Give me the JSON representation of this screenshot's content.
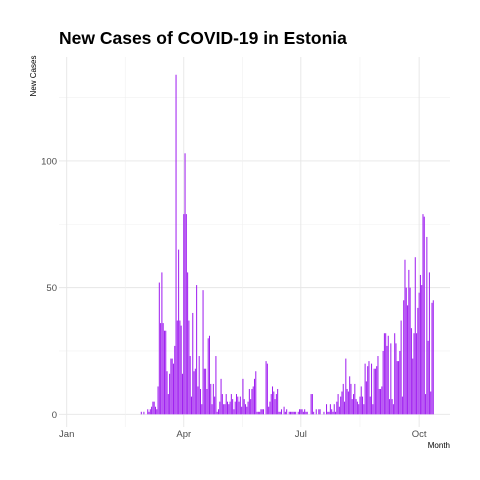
{
  "chart_data": {
    "type": "bar",
    "title": "New Cases of COVID-19 in Estonia",
    "xlabel": "Month",
    "ylabel": "New Cases",
    "x_tick_labels": [
      "Jan",
      "Apr",
      "Jul",
      "Oct"
    ],
    "x_tick_days": [
      0,
      91,
      182,
      274
    ],
    "y_ticks": [
      0,
      50,
      100
    ],
    "xlim_days": [
      -6,
      298
    ],
    "ylim": [
      -5,
      141
    ],
    "bar_color": "#a020f0",
    "grid": true,
    "x_unit": "day of 2020 (Jan 1 = 0)",
    "start_day": 58,
    "values": [
      1,
      0,
      1,
      0,
      0,
      2,
      1,
      2,
      3,
      5,
      5,
      3,
      2,
      11,
      52,
      36,
      56,
      36,
      33,
      33,
      17,
      8,
      16,
      22,
      22,
      20,
      27,
      134,
      37,
      65,
      37,
      35,
      16,
      79,
      103,
      79,
      56,
      37,
      23,
      7,
      40,
      17,
      18,
      51,
      11,
      23,
      10,
      4,
      49,
      18,
      18,
      10,
      30,
      31,
      12,
      4,
      12,
      7,
      23,
      1,
      2,
      5,
      14,
      8,
      4,
      4,
      8,
      5,
      4,
      5,
      8,
      6,
      2,
      5,
      8,
      7,
      5,
      7,
      3,
      14,
      6,
      4,
      3,
      5,
      10,
      6,
      10,
      11,
      14,
      17,
      1,
      1,
      1,
      2,
      2,
      2,
      0,
      21,
      20,
      3,
      5,
      8,
      11,
      9,
      6,
      8,
      10,
      1,
      1,
      2,
      0,
      3,
      1,
      2,
      0,
      1,
      1,
      1,
      1,
      1,
      1,
      0,
      1,
      2,
      2,
      2,
      1,
      2,
      1,
      1,
      0,
      0,
      8,
      8,
      1,
      0,
      2,
      0,
      2,
      2,
      0,
      0,
      1,
      0,
      4,
      1,
      1,
      4,
      2,
      1,
      4,
      1,
      5,
      8,
      3,
      7,
      9,
      12,
      5,
      22,
      10,
      9,
      15,
      12,
      6,
      8,
      12,
      6,
      5,
      4,
      7,
      11,
      7,
      4,
      20,
      13,
      19,
      21,
      7,
      20,
      4,
      18,
      18,
      19,
      23,
      10,
      10,
      11,
      25,
      32,
      32,
      27,
      31,
      6,
      28,
      6,
      4,
      32,
      28,
      21,
      21,
      25,
      37,
      7,
      45,
      61,
      50,
      43,
      57,
      50,
      34,
      22,
      32,
      62,
      32,
      42,
      48,
      55,
      51,
      79,
      78,
      8,
      70,
      29,
      56,
      9,
      44,
      45
    ]
  }
}
